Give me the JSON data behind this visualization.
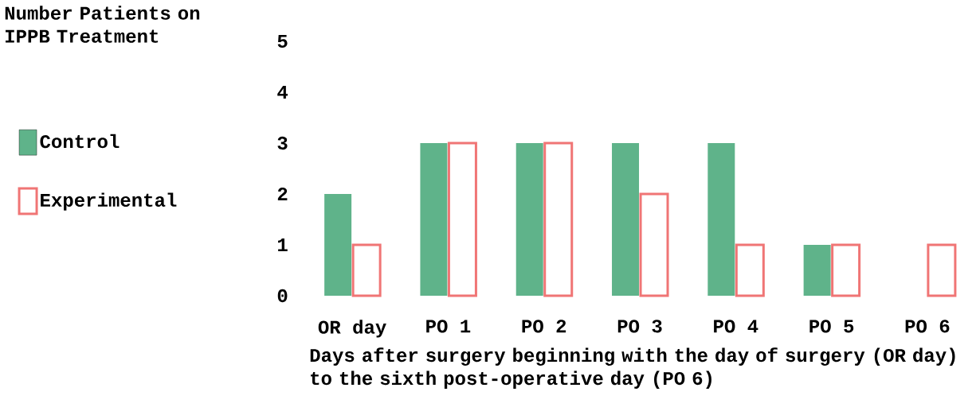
{
  "chart_data": {
    "type": "bar",
    "ylabel": "Number Patients on IPPB Treatment",
    "xlabel": "Days after surgery beginning with the day of surgery (OR day) to the sixth post-operative day (PO 6)",
    "categories": [
      "OR day",
      "PO 1",
      "PO 2",
      "PO 3",
      "PO 4",
      "PO 5",
      "PO 6"
    ],
    "series": [
      {
        "name": "Control",
        "color": "#5fb38a",
        "values": [
          2,
          3,
          3,
          3,
          3,
          1,
          null
        ]
      },
      {
        "name": "Experimental",
        "color": "#f07575",
        "values": [
          1,
          3,
          3,
          2,
          1,
          1,
          1
        ]
      }
    ],
    "ylim": [
      0,
      5
    ],
    "yticks": [
      0,
      1,
      2,
      3,
      4,
      5
    ],
    "legend": "left"
  }
}
